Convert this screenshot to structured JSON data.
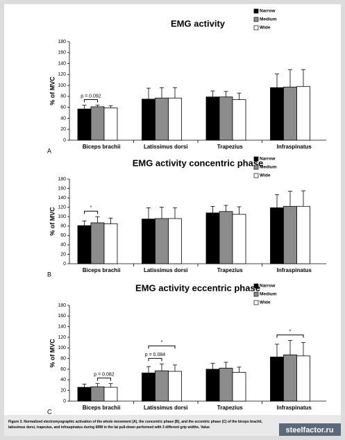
{
  "chart_data": [
    {
      "type": "bar",
      "title": "EMG activity",
      "panel": "A",
      "y_label": "% of MVC",
      "categories": [
        "Biceps brachii",
        "Latissimus dorsi",
        "Trapezius",
        "Infraspinatus"
      ],
      "series": [
        {
          "name": "Narrow",
          "color": "#000000",
          "values": [
            57,
            75,
            79,
            96
          ],
          "errors": [
            7,
            20,
            11,
            25
          ]
        },
        {
          "name": "Medium",
          "color": "#8c8c8c",
          "values": [
            61,
            77,
            79,
            97
          ],
          "errors": [
            3,
            19,
            10,
            32
          ]
        },
        {
          "name": "Wide",
          "color": "#ffffff",
          "values": [
            59,
            77,
            74,
            98
          ],
          "errors": [
            4,
            19,
            12,
            31
          ]
        }
      ],
      "annotations": [
        {
          "text": "p = 0.092",
          "category": 0,
          "series": [
            0,
            1
          ]
        }
      ],
      "ylim": [
        0,
        180
      ],
      "yticks": [
        0,
        20,
        40,
        60,
        80,
        100,
        120,
        140,
        160,
        180
      ]
    },
    {
      "type": "bar",
      "title": "EMG activity concentric phase",
      "panel": "B",
      "y_label": "% of MVC",
      "categories": [
        "Biceps brachii",
        "Latissimus dorsi",
        "Trapezius",
        "Infraspinatus"
      ],
      "series": [
        {
          "name": "Narrow",
          "color": "#000000",
          "values": [
            81,
            95,
            108,
            119
          ],
          "errors": [
            10,
            24,
            14,
            28
          ]
        },
        {
          "name": "Medium",
          "color": "#8c8c8c",
          "values": [
            87,
            96,
            111,
            122
          ],
          "errors": [
            13,
            24,
            13,
            32
          ]
        },
        {
          "name": "Wide",
          "color": "#ffffff",
          "values": [
            85,
            96,
            105,
            122
          ],
          "errors": [
            12,
            23,
            16,
            33
          ]
        }
      ],
      "annotations": [
        {
          "text": "*",
          "category": 0,
          "series": [
            0,
            1
          ]
        }
      ],
      "ylim": [
        0,
        180
      ],
      "yticks": [
        0,
        20,
        40,
        60,
        80,
        100,
        120,
        140,
        160,
        180
      ]
    },
    {
      "type": "bar",
      "title": "EMG activity eccentric phase",
      "panel": "C",
      "y_label": "% of MVC",
      "categories": [
        "Biceps brachii",
        "Latissimus dorsi",
        "Trapezius",
        "Infraspinatus"
      ],
      "series": [
        {
          "name": "Narrow",
          "color": "#000000",
          "values": [
            26,
            53,
            60,
            83
          ],
          "errors": [
            6,
            12,
            11,
            24
          ]
        },
        {
          "name": "Medium",
          "color": "#8c8c8c",
          "values": [
            27,
            57,
            62,
            87
          ],
          "errors": [
            6,
            13,
            11,
            27
          ]
        },
        {
          "name": "Wide",
          "color": "#ffffff",
          "values": [
            26,
            56,
            54,
            85
          ],
          "errors": [
            7,
            12,
            10,
            25
          ]
        }
      ],
      "annotations": [
        {
          "text": "p = 0.082",
          "category": 0,
          "series": [
            1,
            2
          ]
        },
        {
          "text": "p = 0.084",
          "category": 1,
          "series": [
            0,
            1
          ]
        },
        {
          "text": "*",
          "category": 1,
          "series": [
            0,
            2
          ]
        },
        {
          "text": "*",
          "category": 3,
          "series": [
            0,
            2
          ]
        }
      ],
      "ylim": [
        0,
        180
      ],
      "yticks": [
        0,
        20,
        40,
        60,
        80,
        100,
        120,
        140,
        160,
        180
      ]
    }
  ],
  "caption": [
    "Figure 3. Normalized electromyographic activation of the whole movement (A), the concentric phase (B), and the eccentric phase (C) of the biceps brachii,",
    "latissimus dorsi, trapezius, and infraspinatus during 6RM in the lat pull-down performed with 3 different grip widths. Value"
  ],
  "watermark": "steelfactor.ru"
}
